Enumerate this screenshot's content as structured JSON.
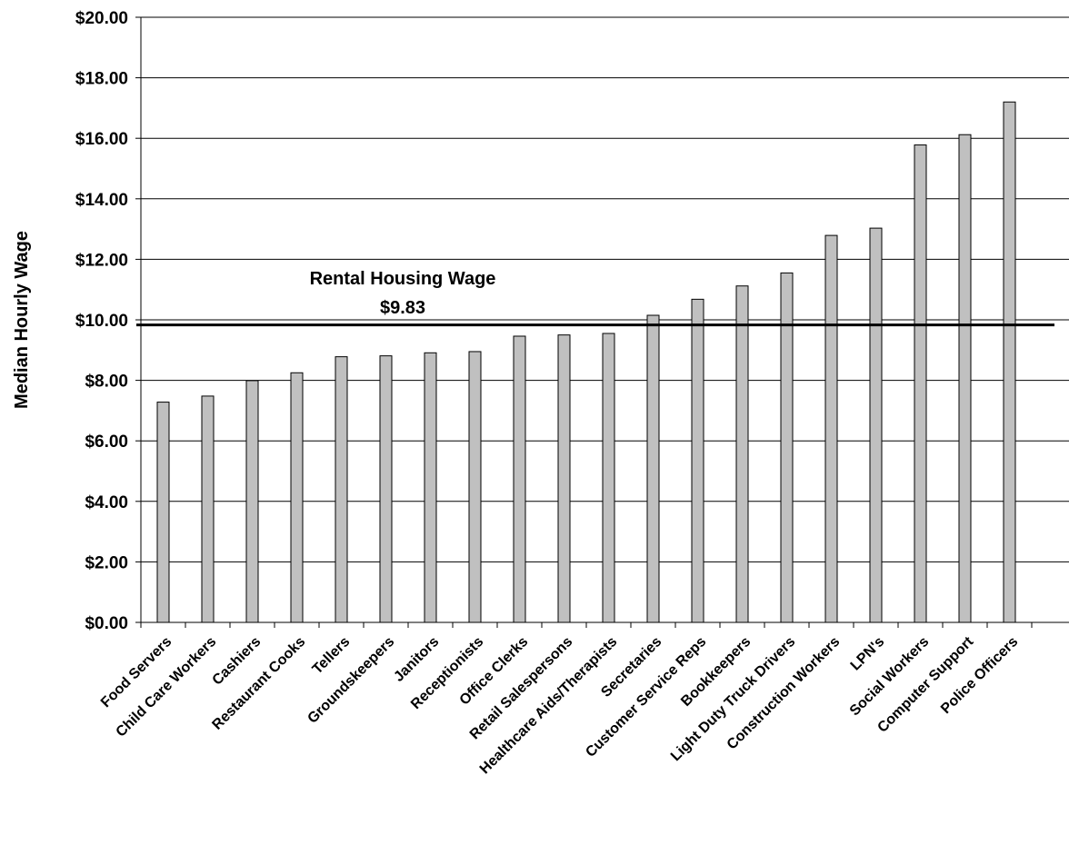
{
  "chart_data": {
    "type": "bar",
    "y_axis_label": "Median Hourly Wage",
    "categories": [
      "Food Servers",
      "Child Care Workers",
      "Cashiers",
      "Restaurant Cooks",
      "Tellers",
      "Groundskeepers",
      "Janitors",
      "Receptionists",
      "Office Clerks",
      "Retail Salespersons",
      "Healthcare Aids/Therapists",
      "Secretaries",
      "Customer Service Reps",
      "Bookkeepers",
      "Light Duty Truck  Drivers",
      "Construction Workers",
      "LPN's",
      "Social Workers",
      "Computer Support",
      "Police Officers",
      null
    ],
    "values": [
      7.28,
      7.48,
      7.99,
      8.25,
      8.78,
      8.81,
      8.91,
      8.95,
      9.46,
      9.5,
      9.55,
      10.15,
      10.68,
      11.12,
      11.55,
      12.79,
      13.03,
      15.78,
      16.12,
      17.2,
      null
    ],
    "color": "#c0c0c0",
    "ylim": [
      0,
      20
    ],
    "yticks": [
      {
        "value": 0,
        "label": "$0.00"
      },
      {
        "value": 2,
        "label": "$2.00"
      },
      {
        "value": 4,
        "label": "$4.00"
      },
      {
        "value": 6,
        "label": "$6.00"
      },
      {
        "value": 8,
        "label": "$8.00"
      },
      {
        "value": 10,
        "label": "$10.00"
      },
      {
        "value": 12,
        "label": "$12.00"
      },
      {
        "value": 14,
        "label": "$14.00"
      },
      {
        "value": 16,
        "label": "$16.00"
      },
      {
        "value": 18,
        "label": "$18.00"
      },
      {
        "value": 20,
        "label": "$20.00"
      }
    ],
    "grid": true,
    "reference_line": {
      "label": "Rental Housing Wage",
      "value": 9.83,
      "value_label": "$9.83"
    }
  }
}
